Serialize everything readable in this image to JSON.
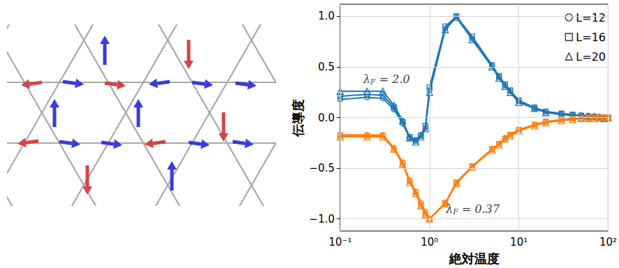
{
  "chart_data": {
    "type": "line",
    "x_label": "絶対温度",
    "y_label": "伝導度",
    "log": "x",
    "grid": true,
    "legend": "upper right",
    "xlim": [
      0.1,
      100
    ],
    "xticks": [
      {
        "value": 0.1,
        "label": "10⁻¹"
      },
      {
        "value": 1,
        "label": "10⁰"
      },
      {
        "value": 10,
        "label": "10¹"
      },
      {
        "value": 100,
        "label": "10²"
      }
    ],
    "ylim": [
      -1.12,
      1.12
    ],
    "yticks": [
      {
        "value": -1,
        "label": "−1.0"
      },
      {
        "value": -0.5,
        "label": "−0.5"
      },
      {
        "value": 0,
        "label": "0.0"
      },
      {
        "value": 0.5,
        "label": "0.5"
      },
      {
        "value": 1,
        "label": "1.0"
      }
    ],
    "x": [
      0.1,
      0.2,
      0.3,
      0.4,
      0.5,
      0.6,
      0.7,
      0.8,
      0.9,
      1,
      1.5,
      2,
      3,
      5,
      6,
      7,
      8,
      10,
      15,
      20,
      30,
      40,
      50,
      60,
      70,
      80,
      90,
      100
    ],
    "series": [
      {
        "name": "L=12",
        "color": "#1f77b4",
        "marker": "circle",
        "values": [
          0.18,
          0.2,
          0.19,
          0.08,
          -0.06,
          -0.2,
          -0.22,
          -0.17,
          -0.1,
          0.27,
          0.88,
          1.0,
          0.78,
          0.51,
          0.4,
          0.32,
          0.26,
          0.16,
          0.09,
          0.06,
          0.04,
          0.03,
          0.02,
          0.02,
          0.01,
          0.01,
          0.0,
          0.0
        ]
      },
      {
        "name": "L=16",
        "color": "#1f77b4",
        "marker": "square",
        "values": [
          0.21,
          0.23,
          0.22,
          0.1,
          -0.04,
          -0.19,
          -0.23,
          -0.18,
          -0.08,
          0.3,
          0.9,
          1.0,
          0.8,
          0.52,
          0.41,
          0.33,
          0.27,
          0.17,
          0.1,
          0.06,
          0.04,
          0.03,
          0.02,
          0.01,
          0.01,
          0.0,
          0.0,
          0.0
        ]
      },
      {
        "name": "L=20",
        "color": "#1f77b4",
        "marker": "triangle",
        "values": [
          0.26,
          0.26,
          0.26,
          0.12,
          -0.03,
          -0.2,
          -0.24,
          -0.19,
          -0.11,
          0.25,
          0.87,
          0.99,
          0.77,
          0.5,
          0.39,
          0.31,
          0.25,
          0.15,
          0.09,
          0.05,
          0.03,
          0.02,
          0.02,
          0.01,
          0.01,
          0.0,
          -0.01,
          0.0
        ]
      },
      {
        "name": "L=12",
        "color": "#ff7f0e",
        "marker": "circle",
        "values": [
          -0.17,
          -0.17,
          -0.17,
          -0.3,
          -0.44,
          -0.62,
          -0.73,
          -0.84,
          -0.93,
          -1.0,
          -0.85,
          -0.64,
          -0.48,
          -0.31,
          -0.26,
          -0.2,
          -0.17,
          -0.12,
          -0.07,
          -0.04,
          -0.02,
          -0.01,
          -0.01,
          -0.01,
          0.0,
          0.0,
          0.0,
          0.0
        ]
      },
      {
        "name": "L=16",
        "color": "#ff7f0e",
        "marker": "square",
        "values": [
          -0.18,
          -0.18,
          -0.18,
          -0.31,
          -0.45,
          -0.63,
          -0.74,
          -0.86,
          -0.95,
          -1.0,
          -0.84,
          -0.64,
          -0.48,
          -0.31,
          -0.26,
          -0.21,
          -0.17,
          -0.12,
          -0.07,
          -0.04,
          -0.02,
          -0.01,
          -0.01,
          0.0,
          0.0,
          0.0,
          0.0,
          0.0
        ]
      },
      {
        "name": "L=20",
        "color": "#ff7f0e",
        "marker": "triangle",
        "values": [
          -0.19,
          -0.19,
          -0.19,
          -0.31,
          -0.46,
          -0.64,
          -0.75,
          -0.87,
          -0.96,
          -1.0,
          -0.85,
          -0.65,
          -0.49,
          -0.32,
          -0.27,
          -0.21,
          -0.18,
          -0.13,
          -0.08,
          -0.05,
          -0.03,
          -0.02,
          -0.01,
          -0.01,
          -0.01,
          0.0,
          0.0,
          0.0
        ]
      }
    ],
    "annotations": [
      {
        "text": "λF = 2.0",
        "x": 0.33,
        "y": 0.38
      },
      {
        "text": "λF = 0.37",
        "x": 3.05,
        "y": -0.9
      }
    ]
  }
}
